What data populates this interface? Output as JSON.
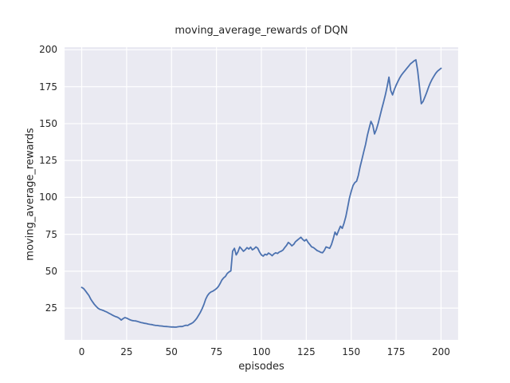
{
  "window": {
    "title": "moving_average_rewards of DQN"
  },
  "colors": {
    "line": "#4C72B0",
    "axes_background": "#EAEAF2",
    "grid": "#FFFFFF",
    "text": "#262626",
    "figure_background": "#FFFFFF"
  },
  "chart_data": {
    "type": "line",
    "title": "moving_average_rewards of DQN",
    "xlabel": "episodes",
    "ylabel": "moving_average_rewards",
    "xlim": [
      -10,
      210
    ],
    "ylim": [
      2.9,
      202.4
    ],
    "xticks": [
      0,
      25,
      50,
      75,
      100,
      125,
      150,
      175,
      200
    ],
    "yticks": [
      25,
      50,
      75,
      100,
      125,
      150,
      175,
      200
    ],
    "grid": true,
    "legend_position": "none",
    "series": [
      {
        "name": "moving_average_rewards",
        "color": "#4C72B0",
        "points": [
          [
            0,
            39.0
          ],
          [
            1,
            38.3
          ],
          [
            2,
            36.8
          ],
          [
            3,
            35.2
          ],
          [
            4,
            33.5
          ],
          [
            5,
            31.2
          ],
          [
            6,
            29.3
          ],
          [
            7,
            27.6
          ],
          [
            8,
            26.2
          ],
          [
            9,
            25.0
          ],
          [
            10,
            24.2
          ],
          [
            11,
            23.8
          ],
          [
            12,
            23.4
          ],
          [
            13,
            22.8
          ],
          [
            14,
            22.3
          ],
          [
            15,
            21.6
          ],
          [
            16,
            21.0
          ],
          [
            17,
            20.3
          ],
          [
            18,
            19.7
          ],
          [
            19,
            19.2
          ],
          [
            20,
            18.8
          ],
          [
            21,
            18.0
          ],
          [
            22,
            16.9
          ],
          [
            23,
            17.8
          ],
          [
            24,
            18.6
          ],
          [
            25,
            18.2
          ],
          [
            26,
            17.6
          ],
          [
            27,
            17.0
          ],
          [
            28,
            16.6
          ],
          [
            29,
            16.4
          ],
          [
            30,
            16.3
          ],
          [
            31,
            16.0
          ],
          [
            32,
            15.6
          ],
          [
            33,
            15.2
          ],
          [
            34,
            15.0
          ],
          [
            35,
            14.7
          ],
          [
            36,
            14.5
          ],
          [
            37,
            14.2
          ],
          [
            38,
            14.0
          ],
          [
            39,
            13.8
          ],
          [
            40,
            13.5
          ],
          [
            41,
            13.3
          ],
          [
            42,
            13.2
          ],
          [
            43,
            13.0
          ],
          [
            44,
            12.9
          ],
          [
            45,
            12.8
          ],
          [
            46,
            12.6
          ],
          [
            47,
            12.5
          ],
          [
            48,
            12.4
          ],
          [
            49,
            12.3
          ],
          [
            50,
            12.2
          ],
          [
            51,
            12.2
          ],
          [
            52,
            12.1
          ],
          [
            53,
            12.2
          ],
          [
            54,
            12.4
          ],
          [
            55,
            12.6
          ],
          [
            56,
            12.5
          ],
          [
            57,
            13.0
          ],
          [
            58,
            13.4
          ],
          [
            59,
            13.2
          ],
          [
            60,
            14.0
          ],
          [
            61,
            14.5
          ],
          [
            62,
            15.3
          ],
          [
            63,
            16.5
          ],
          [
            64,
            18.0
          ],
          [
            65,
            20.0
          ],
          [
            66,
            22.0
          ],
          [
            67,
            24.5
          ],
          [
            68,
            27.5
          ],
          [
            69,
            31.0
          ],
          [
            70,
            33.5
          ],
          [
            71,
            35.0
          ],
          [
            72,
            36.0
          ],
          [
            73,
            36.5
          ],
          [
            74,
            37.3
          ],
          [
            75,
            38.2
          ],
          [
            76,
            39.5
          ],
          [
            77,
            41.5
          ],
          [
            78,
            44.0
          ],
          [
            79,
            45.5
          ],
          [
            80,
            46.5
          ],
          [
            81,
            48.5
          ],
          [
            82,
            49.5
          ],
          [
            83,
            50.2
          ],
          [
            84,
            63.5
          ],
          [
            85,
            65.5
          ],
          [
            86,
            61.0
          ],
          [
            87,
            63.2
          ],
          [
            88,
            66.5
          ],
          [
            89,
            65.0
          ],
          [
            90,
            63.5
          ],
          [
            91,
            64.5
          ],
          [
            92,
            66.0
          ],
          [
            93,
            65.0
          ],
          [
            94,
            66.3
          ],
          [
            95,
            64.5
          ],
          [
            96,
            65.3
          ],
          [
            97,
            66.5
          ],
          [
            98,
            65.5
          ],
          [
            99,
            63.0
          ],
          [
            100,
            61.0
          ],
          [
            101,
            60.2
          ],
          [
            102,
            61.5
          ],
          [
            103,
            61.0
          ],
          [
            104,
            62.3
          ],
          [
            105,
            61.5
          ],
          [
            106,
            60.5
          ],
          [
            107,
            61.8
          ],
          [
            108,
            62.5
          ],
          [
            109,
            62.0
          ],
          [
            110,
            63.0
          ],
          [
            111,
            63.5
          ],
          [
            112,
            64.3
          ],
          [
            113,
            66.0
          ],
          [
            114,
            67.5
          ],
          [
            115,
            69.5
          ],
          [
            116,
            68.5
          ],
          [
            117,
            67.2
          ],
          [
            118,
            68.2
          ],
          [
            119,
            70.0
          ],
          [
            120,
            71.0
          ],
          [
            121,
            72.0
          ],
          [
            122,
            73.0
          ],
          [
            123,
            71.5
          ],
          [
            124,
            70.5
          ],
          [
            125,
            71.5
          ],
          [
            126,
            69.5
          ],
          [
            127,
            68.0
          ],
          [
            128,
            66.5
          ],
          [
            129,
            66.0
          ],
          [
            130,
            65.0
          ],
          [
            131,
            64.0
          ],
          [
            132,
            63.5
          ],
          [
            133,
            62.8
          ],
          [
            134,
            62.5
          ],
          [
            135,
            64.0
          ],
          [
            136,
            66.5
          ],
          [
            137,
            66.0
          ],
          [
            138,
            65.5
          ],
          [
            139,
            68.0
          ],
          [
            140,
            72.0
          ],
          [
            141,
            76.5
          ],
          [
            142,
            74.5
          ],
          [
            143,
            77.5
          ],
          [
            144,
            80.5
          ],
          [
            145,
            79.0
          ],
          [
            146,
            82.5
          ],
          [
            147,
            87.0
          ],
          [
            148,
            93.0
          ],
          [
            149,
            99.5
          ],
          [
            150,
            104.0
          ],
          [
            151,
            108.0
          ],
          [
            152,
            110.0
          ],
          [
            153,
            111.0
          ],
          [
            154,
            115.0
          ],
          [
            155,
            121.0
          ],
          [
            156,
            126.0
          ],
          [
            157,
            131.0
          ],
          [
            158,
            136.0
          ],
          [
            159,
            142.0
          ],
          [
            160,
            147.0
          ],
          [
            161,
            151.5
          ],
          [
            162,
            149.0
          ],
          [
            163,
            143.0
          ],
          [
            164,
            146.0
          ],
          [
            165,
            150.0
          ],
          [
            166,
            155.0
          ],
          [
            167,
            160.0
          ],
          [
            168,
            164.5
          ],
          [
            169,
            169.5
          ],
          [
            170,
            175.0
          ],
          [
            171,
            181.5
          ],
          [
            172,
            172.5
          ],
          [
            173,
            169.5
          ],
          [
            174,
            173.0
          ],
          [
            175,
            176.0
          ],
          [
            176,
            178.5
          ],
          [
            177,
            181.0
          ],
          [
            178,
            183.0
          ],
          [
            179,
            184.5
          ],
          [
            180,
            186.0
          ],
          [
            181,
            187.5
          ],
          [
            182,
            189.0
          ],
          [
            183,
            190.5
          ],
          [
            184,
            191.5
          ],
          [
            185,
            192.5
          ],
          [
            186,
            193.2
          ],
          [
            187,
            186.0
          ],
          [
            188,
            175.0
          ],
          [
            189,
            163.5
          ],
          [
            190,
            165.0
          ],
          [
            191,
            168.0
          ],
          [
            192,
            171.0
          ],
          [
            193,
            174.5
          ],
          [
            194,
            177.5
          ],
          [
            195,
            180.0
          ],
          [
            196,
            182.0
          ],
          [
            197,
            184.0
          ],
          [
            198,
            185.5
          ],
          [
            199,
            186.5
          ],
          [
            200,
            187.5
          ]
        ]
      }
    ]
  }
}
